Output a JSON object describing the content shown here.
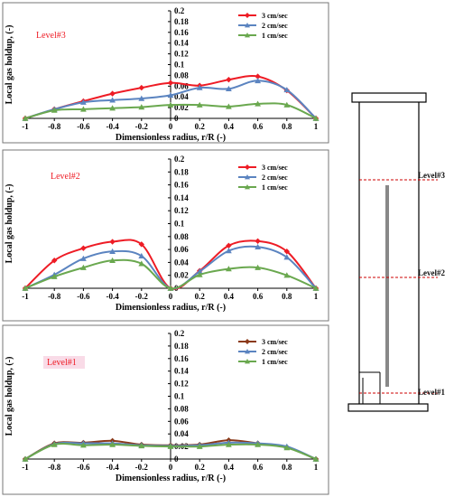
{
  "chart_data": [
    {
      "type": "line",
      "panel": "top",
      "level_label": "Level#3",
      "xlabel": "Dimensionless radius, r/R (-)",
      "ylabel": "Local gas holdup, (-)",
      "xlim": [
        -1,
        1
      ],
      "ylim": [
        0,
        0.2
      ],
      "xticks": [
        "-1",
        "-0.8",
        "-0.6",
        "-0.4",
        "-0.2",
        "0",
        "0.2",
        "0.4",
        "0.6",
        "0.8",
        "1"
      ],
      "yticks": [
        "0",
        "0.02",
        "0.04",
        "0.06",
        "0.08",
        "0.1",
        "0.12",
        "0.14",
        "0.16",
        "0.18",
        "0.2"
      ],
      "legend_position": "top-right",
      "x": [
        -1,
        -0.8,
        -0.6,
        -0.4,
        -0.2,
        0,
        0.2,
        0.4,
        0.6,
        0.8,
        1
      ],
      "series": [
        {
          "name": "3 cm/sec",
          "color": "#ee1c25",
          "marker": "diamond",
          "values": [
            0,
            0.017,
            0.032,
            0.046,
            0.057,
            0.066,
            0.061,
            0.072,
            0.078,
            0.052,
            0
          ]
        },
        {
          "name": "2 cm/sec",
          "color": "#5b84c0",
          "marker": "triangle",
          "values": [
            0,
            0.017,
            0.03,
            0.034,
            0.037,
            0.043,
            0.057,
            0.055,
            0.07,
            0.053,
            0
          ]
        },
        {
          "name": "1 cm/sec",
          "color": "#6aa84f",
          "marker": "triangle",
          "values": [
            0,
            0.015,
            0.017,
            0.019,
            0.021,
            0.025,
            0.025,
            0.022,
            0.027,
            0.025,
            0
          ]
        }
      ]
    },
    {
      "type": "line",
      "panel": "middle",
      "level_label": "Level#2",
      "xlabel": "Dimensionless radius, r/R (-)",
      "ylabel": "Local gas holdup, (-)",
      "xlim": [
        -1,
        1
      ],
      "ylim": [
        0,
        0.2
      ],
      "xticks": [
        "-1",
        "-0.8",
        "-0.6",
        "-0.4",
        "-0.2",
        "0",
        "0.2",
        "0.4",
        "0.6",
        "0.8",
        "1"
      ],
      "yticks": [
        "0",
        "0.02",
        "0.04",
        "0.06",
        "0.08",
        "0.1",
        "0.12",
        "0.14",
        "0.16",
        "0.18",
        "0.2"
      ],
      "legend_position": "top-right",
      "x": [
        -1,
        -0.8,
        -0.6,
        -0.4,
        -0.2,
        0,
        0.2,
        0.4,
        0.6,
        0.8,
        1
      ],
      "series": [
        {
          "name": "3 cm/sec",
          "color": "#ee1c25",
          "marker": "diamond",
          "values": [
            0,
            0.043,
            0.062,
            0.072,
            0.068,
            0,
            0.027,
            0.066,
            0.073,
            0.057,
            0
          ]
        },
        {
          "name": "2 cm/sec",
          "color": "#5b84c0",
          "marker": "triangle",
          "values": [
            0,
            0.021,
            0.046,
            0.057,
            0.05,
            0,
            0.026,
            0.058,
            0.064,
            0.048,
            0
          ]
        },
        {
          "name": "1 cm/sec",
          "color": "#6aa84f",
          "marker": "triangle",
          "values": [
            0,
            0.018,
            0.032,
            0.043,
            0.038,
            0,
            0.021,
            0.03,
            0.032,
            0.02,
            0
          ]
        }
      ]
    },
    {
      "type": "line",
      "panel": "bottom",
      "level_label": "Level#1",
      "xlabel": "Dimensionless radius, r/R (-)",
      "ylabel": "Local gas holdup, (-)",
      "xlim": [
        -1,
        1
      ],
      "ylim": [
        0,
        0.2
      ],
      "xticks": [
        "-1",
        "-0.8",
        "-0.6",
        "-0.4",
        "-0.2",
        "0",
        "0.2",
        "0.4",
        "0.6",
        "0.8",
        "1"
      ],
      "yticks": [
        "0",
        "0.02",
        "0.04",
        "0.06",
        "0.08",
        "0.1",
        "0.12",
        "0.14",
        "0.16",
        "0.18",
        "0.2"
      ],
      "legend_position": "top-right",
      "x": [
        -1,
        -0.8,
        -0.6,
        -0.4,
        -0.2,
        0,
        0.2,
        0.4,
        0.6,
        0.8,
        1
      ],
      "series": [
        {
          "name": "3 cm/sec",
          "color": "#8b3a1a",
          "marker": "diamond",
          "values": [
            0,
            0.025,
            0.026,
            0.029,
            0.023,
            0.022,
            0.023,
            0.03,
            0.025,
            0.019,
            0
          ]
        },
        {
          "name": "2 cm/sec",
          "color": "#5b84c0",
          "marker": "triangle",
          "values": [
            0,
            0.024,
            0.025,
            0.025,
            0.022,
            0.021,
            0.022,
            0.026,
            0.025,
            0.02,
            0
          ]
        },
        {
          "name": "1 cm/sec",
          "color": "#6aa84f",
          "marker": "triangle",
          "values": [
            0,
            0.023,
            0.022,
            0.023,
            0.021,
            0.02,
            0.02,
            0.023,
            0.023,
            0.018,
            0
          ]
        }
      ]
    }
  ],
  "column": {
    "levels": [
      "Level#3",
      "Level#2",
      "Level#1"
    ],
    "colors": {
      "wall": "#000000",
      "level_line": "#cc0000",
      "probe": "#888888"
    }
  }
}
